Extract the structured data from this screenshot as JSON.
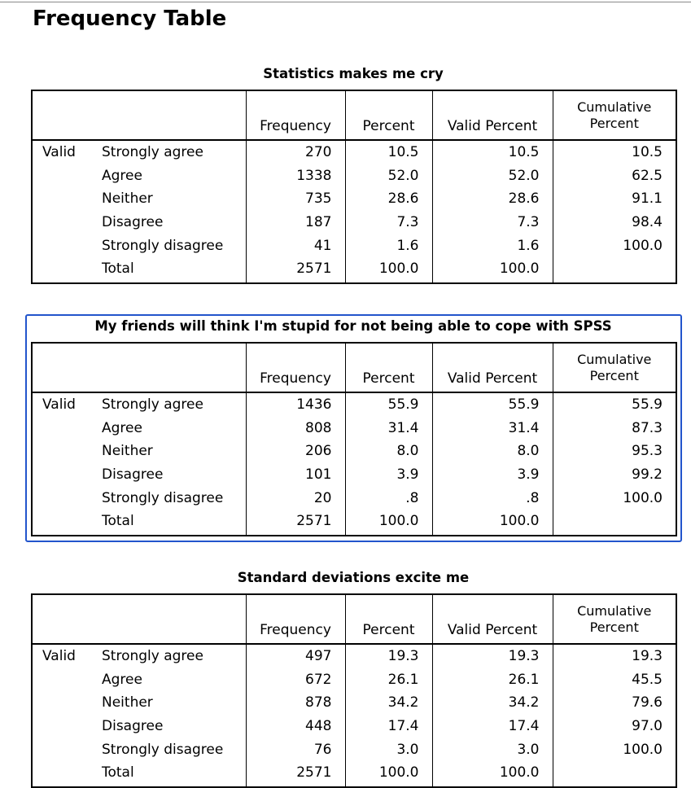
{
  "page": {
    "title": "Frequency Table"
  },
  "columns": {
    "frequency": "Frequency",
    "percent": "Percent",
    "valid_percent": "Valid Percent",
    "cumulative_line1": "Cumulative",
    "cumulative_line2": "Percent"
  },
  "colors": {
    "selection_border": "#2255cc",
    "rule": "#8a8a8a"
  },
  "tables": [
    {
      "title": "Statistics makes me cry",
      "selected": false,
      "group": "Valid",
      "rows": [
        {
          "label": "Strongly agree",
          "frequency": "270",
          "percent": "10.5",
          "valid_percent": "10.5",
          "cumulative": "10.5"
        },
        {
          "label": "Agree",
          "frequency": "1338",
          "percent": "52.0",
          "valid_percent": "52.0",
          "cumulative": "62.5"
        },
        {
          "label": "Neither",
          "frequency": "735",
          "percent": "28.6",
          "valid_percent": "28.6",
          "cumulative": "91.1"
        },
        {
          "label": "Disagree",
          "frequency": "187",
          "percent": "7.3",
          "valid_percent": "7.3",
          "cumulative": "98.4"
        },
        {
          "label": "Strongly disagree",
          "frequency": "41",
          "percent": "1.6",
          "valid_percent": "1.6",
          "cumulative": "100.0"
        },
        {
          "label": "Total",
          "frequency": "2571",
          "percent": "100.0",
          "valid_percent": "100.0",
          "cumulative": ""
        }
      ]
    },
    {
      "title": "My friends will think I'm stupid for not being able to cope with SPSS",
      "selected": true,
      "group": "Valid",
      "rows": [
        {
          "label": "Strongly agree",
          "frequency": "1436",
          "percent": "55.9",
          "valid_percent": "55.9",
          "cumulative": "55.9"
        },
        {
          "label": "Agree",
          "frequency": "808",
          "percent": "31.4",
          "valid_percent": "31.4",
          "cumulative": "87.3"
        },
        {
          "label": "Neither",
          "frequency": "206",
          "percent": "8.0",
          "valid_percent": "8.0",
          "cumulative": "95.3"
        },
        {
          "label": "Disagree",
          "frequency": "101",
          "percent": "3.9",
          "valid_percent": "3.9",
          "cumulative": "99.2"
        },
        {
          "label": "Strongly disagree",
          "frequency": "20",
          "percent": ".8",
          "valid_percent": ".8",
          "cumulative": "100.0"
        },
        {
          "label": "Total",
          "frequency": "2571",
          "percent": "100.0",
          "valid_percent": "100.0",
          "cumulative": ""
        }
      ]
    },
    {
      "title": "Standard deviations excite me",
      "selected": false,
      "group": "Valid",
      "rows": [
        {
          "label": "Strongly agree",
          "frequency": "497",
          "percent": "19.3",
          "valid_percent": "19.3",
          "cumulative": "19.3"
        },
        {
          "label": "Agree",
          "frequency": "672",
          "percent": "26.1",
          "valid_percent": "26.1",
          "cumulative": "45.5"
        },
        {
          "label": "Neither",
          "frequency": "878",
          "percent": "34.2",
          "valid_percent": "34.2",
          "cumulative": "79.6"
        },
        {
          "label": "Disagree",
          "frequency": "448",
          "percent": "17.4",
          "valid_percent": "17.4",
          "cumulative": "97.0"
        },
        {
          "label": "Strongly disagree",
          "frequency": "76",
          "percent": "3.0",
          "valid_percent": "3.0",
          "cumulative": "100.0"
        },
        {
          "label": "Total",
          "frequency": "2571",
          "percent": "100.0",
          "valid_percent": "100.0",
          "cumulative": ""
        }
      ]
    }
  ]
}
